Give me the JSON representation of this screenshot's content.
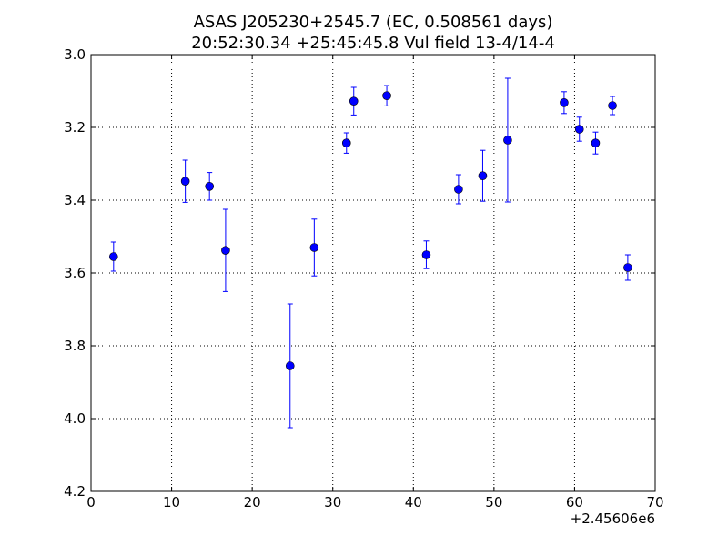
{
  "chart_data": {
    "type": "scatter",
    "title": "ASAS J205230+2545.7 (EC, 0.508561 days)",
    "subtitle": "20:52:30.34 +25:45:45.8 Vul field 13-4/14-4",
    "xlabel": "",
    "ylabel": "",
    "x_offset_label": "+2.45606e6",
    "xlim": [
      0,
      70
    ],
    "ylim": [
      3.0,
      4.2
    ],
    "y_inverted": true,
    "x_ticks": [
      "0",
      "10",
      "20",
      "30",
      "40",
      "50",
      "60",
      "70"
    ],
    "y_ticks": [
      "3.0",
      "3.2",
      "3.4",
      "3.6",
      "3.8",
      "4.0",
      "4.2"
    ],
    "grid": true,
    "marker_color": "#0000ff",
    "errorbar_color": "#0000ff",
    "points": [
      {
        "x": 2.8,
        "y": 3.555,
        "err": 0.04
      },
      {
        "x": 11.7,
        "y": 3.348,
        "err": 0.058
      },
      {
        "x": 14.7,
        "y": 3.362,
        "err": 0.038
      },
      {
        "x": 16.7,
        "y": 3.538,
        "err": 0.113
      },
      {
        "x": 24.7,
        "y": 3.855,
        "err": 0.17
      },
      {
        "x": 27.7,
        "y": 3.53,
        "err": 0.078
      },
      {
        "x": 31.7,
        "y": 3.243,
        "err": 0.028
      },
      {
        "x": 32.6,
        "y": 3.128,
        "err": 0.038
      },
      {
        "x": 36.7,
        "y": 3.113,
        "err": 0.028
      },
      {
        "x": 41.6,
        "y": 3.55,
        "err": 0.038
      },
      {
        "x": 45.6,
        "y": 3.37,
        "err": 0.04
      },
      {
        "x": 48.6,
        "y": 3.333,
        "err": 0.07
      },
      {
        "x": 51.7,
        "y": 3.235,
        "err": 0.17
      },
      {
        "x": 58.7,
        "y": 3.132,
        "err": 0.03
      },
      {
        "x": 60.6,
        "y": 3.205,
        "err": 0.033
      },
      {
        "x": 62.6,
        "y": 3.243,
        "err": 0.03
      },
      {
        "x": 64.7,
        "y": 3.14,
        "err": 0.025
      },
      {
        "x": 66.6,
        "y": 3.585,
        "err": 0.035
      }
    ]
  }
}
